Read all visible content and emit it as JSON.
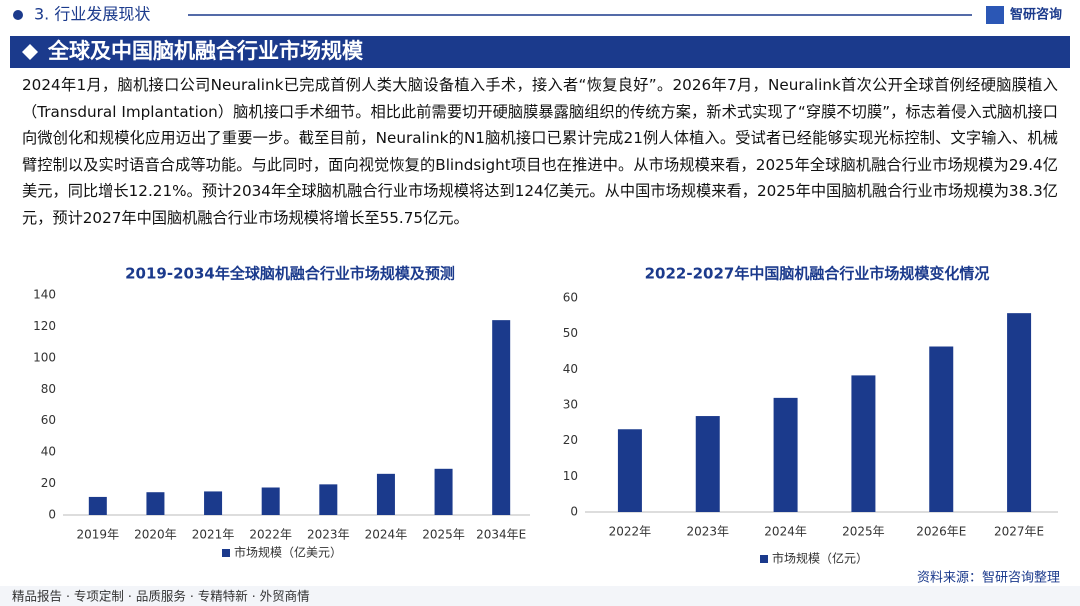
{
  "header": {
    "section": "3. 行业发展现状",
    "brand": "智研咨询"
  },
  "title": "全球及中国脑机融合行业市场规模",
  "paragraph": "2024年1月，脑机接口公司Neuralink已完成首例人类大脑设备植入手术，接入者“恢复良好”。2026年7月，Neuralink首次公开全球首例经硬脑膜植入（Transdural Implantation）脑机接口手术细节。相比此前需要切开硬脑膜暴露脑组织的传统方案，新术式实现了“穿膜不切膜”，标志着侵入式脑机接口向微创化和规模化应用迈出了重要一步。截至目前，Neuralink的N1脑机接口已累计完成21例人体植入。受试者已经能够实现光标控制、文字输入、机械臂控制以及实时语音合成等功能。与此同时，面向视觉恢复的Blindsight项目也在推进中。从市场规模来看，2025年全球脑机融合行业市场规模为29.4亿美元，同比增长12.21%。预计2034年全球脑机融合行业市场规模将达到124亿美元。从中国市场规模来看，2025年中国脑机融合行业市场规模为38.3亿元，预计2027年中国脑机融合行业市场规模将增长至55.75亿元。",
  "chart_data": [
    {
      "type": "bar",
      "title": "2019-2034年全球脑机融合行业市场规模及预测",
      "categories": [
        "2019年",
        "2020年",
        "2021年",
        "2022年",
        "2023年",
        "2024年",
        "2025年",
        "2034年E"
      ],
      "series": [
        {
          "name": "市场规模（亿美元）",
          "color": "#1b3a8c",
          "values": [
            11.5,
            14.5,
            15,
            17.5,
            19.5,
            26.2,
            29.4,
            124
          ]
        }
      ],
      "ylim": [
        0,
        140
      ],
      "yticks": [
        0,
        20,
        40,
        60,
        80,
        100,
        120,
        140
      ],
      "grid": false
    },
    {
      "type": "bar",
      "title": "2022-2027年中国脑机融合行业市场规模变化情况",
      "categories": [
        "2022年",
        "2023年",
        "2024年",
        "2025年",
        "2026年E",
        "2027年E"
      ],
      "series": [
        {
          "name": "市场规模（亿元）",
          "color": "#1b3a8c",
          "values": [
            23.2,
            26.9,
            32,
            38.3,
            46.4,
            55.75
          ]
        }
      ],
      "ylim": [
        0,
        60
      ],
      "yticks": [
        0,
        10,
        20,
        30,
        40,
        50,
        60
      ],
      "grid": false
    }
  ],
  "source": "资料来源：智研咨询整理",
  "footer": "精品报告 · 专项定制 · 品质服务 · 专精特新 · 外贸商情"
}
